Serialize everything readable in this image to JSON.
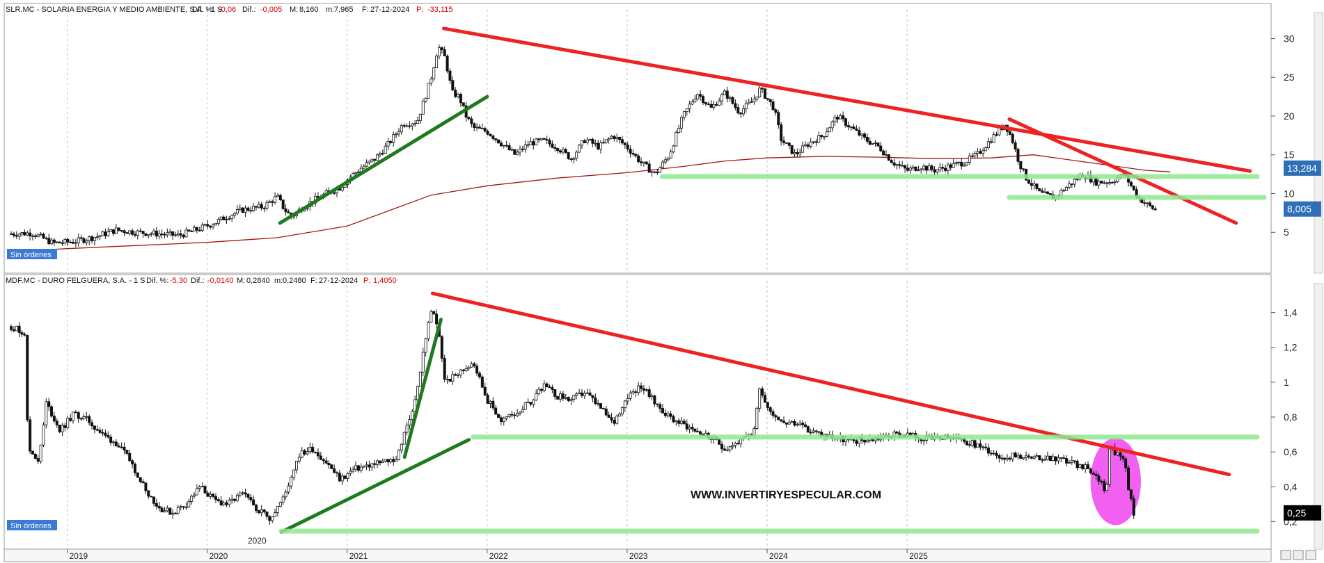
{
  "chart_data": [
    {
      "type": "candlestick",
      "panel": "top",
      "header": {
        "symbol": "SLR.MC - SOLARIA ENERGIA Y MEDIO AMBIENTE, S.A. - 1 S",
        "dif_pct_label": "Dif. %:",
        "dif_pct": "-0,06",
        "dif_label": "Dif.:",
        "dif": "-0,005",
        "max_label": "M:",
        "max": "8,160",
        "min_label": "m:",
        "min": "7,965",
        "date_label": "F:",
        "date": "27-12-2024",
        "p_label": "P:",
        "p": "-33,115"
      },
      "ylim": [
        0,
        33
      ],
      "yticks": [
        5,
        10,
        15,
        20,
        25,
        30
      ],
      "ytick_labels": [
        "5",
        "10",
        "15",
        "20",
        "25",
        "30"
      ],
      "price_badges": [
        {
          "value": 13.284,
          "label": "13,284",
          "color": "#2f6fb8"
        },
        {
          "value": 8.005,
          "label": "8,005",
          "color": "#2f6fb8"
        }
      ],
      "order_tag": "Sin órdenes",
      "price_path": [
        [
          2018.6,
          4.8
        ],
        [
          2018.75,
          4.9
        ],
        [
          2018.9,
          3.6
        ],
        [
          2019.05,
          3.8
        ],
        [
          2019.2,
          4.4
        ],
        [
          2019.35,
          5.3
        ],
        [
          2019.5,
          5.0
        ],
        [
          2019.65,
          4.8
        ],
        [
          2019.8,
          4.6
        ],
        [
          2019.95,
          5.5
        ],
        [
          2020.05,
          6.2
        ],
        [
          2020.15,
          7.1
        ],
        [
          2020.25,
          7.9
        ],
        [
          2020.4,
          8.3
        ],
        [
          2020.5,
          9.6
        ],
        [
          2020.55,
          8.0
        ],
        [
          2020.6,
          7.0
        ],
        [
          2020.7,
          8.5
        ],
        [
          2020.85,
          10.0
        ],
        [
          2020.95,
          10.8
        ],
        [
          2021.0,
          11.8
        ],
        [
          2021.1,
          13.3
        ],
        [
          2021.2,
          14.5
        ],
        [
          2021.3,
          16.5
        ],
        [
          2021.4,
          19.0
        ],
        [
          2021.5,
          19.3
        ],
        [
          2021.55,
          22.0
        ],
        [
          2021.6,
          25.0
        ],
        [
          2021.65,
          29.0
        ],
        [
          2021.7,
          27.5
        ],
        [
          2021.75,
          23.0
        ],
        [
          2021.8,
          22.5
        ],
        [
          2021.85,
          20.0
        ],
        [
          2021.9,
          18.5
        ],
        [
          2022.0,
          18.0
        ],
        [
          2022.1,
          16.5
        ],
        [
          2022.2,
          15.0
        ],
        [
          2022.3,
          16.5
        ],
        [
          2022.4,
          16.8
        ],
        [
          2022.5,
          16.0
        ],
        [
          2022.6,
          14.5
        ],
        [
          2022.7,
          17.0
        ],
        [
          2022.8,
          16.0
        ],
        [
          2022.9,
          17.5
        ],
        [
          2023.0,
          16.0
        ],
        [
          2023.1,
          14.0
        ],
        [
          2023.2,
          12.5
        ],
        [
          2023.3,
          15.0
        ],
        [
          2023.4,
          20.0
        ],
        [
          2023.5,
          23.0
        ],
        [
          2023.6,
          21.0
        ],
        [
          2023.7,
          23.0
        ],
        [
          2023.8,
          20.5
        ],
        [
          2023.9,
          22.0
        ],
        [
          2023.95,
          23.5
        ],
        [
          2024.05,
          21.0
        ],
        [
          2024.1,
          17.0
        ],
        [
          2024.2,
          15.0
        ],
        [
          2024.3,
          16.5
        ],
        [
          2024.4,
          17.5
        ],
        [
          2024.5,
          20.0
        ],
        [
          2024.6,
          18.5
        ],
        [
          2024.7,
          17.0
        ],
        [
          2024.8,
          16.0
        ],
        [
          2024.9,
          14.0
        ],
        [
          2025.0,
          13.0
        ],
        [
          2025.1,
          13.5
        ],
        [
          2025.2,
          13.0
        ],
        [
          2025.3,
          13.5
        ],
        [
          2025.4,
          14.0
        ],
        [
          2025.5,
          15.0
        ],
        [
          2025.6,
          17.0
        ],
        [
          2025.7,
          19.0
        ],
        [
          2025.75,
          17.0
        ],
        [
          2025.8,
          14.0
        ],
        [
          2025.85,
          12.0
        ],
        [
          2025.95,
          10.0
        ],
        [
          2026.05,
          9.5
        ],
        [
          2026.15,
          11.0
        ],
        [
          2026.25,
          12.5
        ],
        [
          2026.35,
          11.5
        ],
        [
          2026.45,
          11.5
        ],
        [
          2026.55,
          12.5
        ],
        [
          2026.6,
          11.0
        ],
        [
          2026.65,
          9.5
        ],
        [
          2026.72,
          8.5
        ],
        [
          2026.78,
          7.8
        ]
      ],
      "moving_average": [
        [
          2018.6,
          2.5
        ],
        [
          2019.0,
          2.9
        ],
        [
          2019.5,
          3.3
        ],
        [
          2020.0,
          3.7
        ],
        [
          2020.5,
          4.3
        ],
        [
          2021.0,
          5.8
        ],
        [
          2021.3,
          7.8
        ],
        [
          2021.6,
          9.8
        ],
        [
          2022.0,
          11.0
        ],
        [
          2022.5,
          12.0
        ],
        [
          2023.0,
          12.7
        ],
        [
          2023.4,
          13.5
        ],
        [
          2023.7,
          14.2
        ],
        [
          2024.0,
          14.6
        ],
        [
          2024.4,
          14.8
        ],
        [
          2024.8,
          14.7
        ],
        [
          2025.2,
          14.5
        ],
        [
          2025.6,
          14.6
        ],
        [
          2025.9,
          15.0
        ],
        [
          2026.3,
          14.0
        ],
        [
          2026.7,
          13.0
        ],
        [
          2026.88,
          12.8
        ]
      ],
      "trendlines": [
        {
          "color": "#ee2222",
          "from": [
            2021.69,
            31.3
          ],
          "to": [
            2027.45,
            12.9
          ]
        },
        {
          "color": "#ee2222",
          "from": [
            2025.73,
            19.6
          ],
          "to": [
            2027.35,
            6.2
          ]
        },
        {
          "color": "#1f7a1f",
          "from": [
            2020.52,
            6.2
          ],
          "to": [
            2022.0,
            22.5
          ]
        },
        {
          "color": "#8ee88e",
          "from": [
            2023.25,
            12.2
          ],
          "to": [
            2027.5,
            12.2
          ]
        },
        {
          "color": "#8ee88e",
          "from": [
            2025.73,
            9.5
          ],
          "to": [
            2027.55,
            9.5
          ]
        }
      ]
    },
    {
      "type": "candlestick",
      "panel": "bottom",
      "header": {
        "symbol": "MDF.MC - DURO FELGUERA, S.A. - 1 S",
        "dif_pct_label": "Dif. %:",
        "dif_pct": "-5,30",
        "dif_label": "Dif.:",
        "dif": "-0,0140",
        "max_label": "M:",
        "max": "0,2840",
        "min_label": "m:",
        "min": "0,2480",
        "date_label": "F:",
        "date": "27-12-2024",
        "p_label": "P:",
        "p": "1,4050"
      },
      "ylim": [
        0.05,
        1.55
      ],
      "yticks": [
        0.2,
        0.4,
        0.6,
        0.8,
        1.0,
        1.2,
        1.4
      ],
      "ytick_labels": [
        "0,2",
        "0,4",
        "0,6",
        "0,8",
        "1",
        "1,2",
        "1,4"
      ],
      "price_badges": [
        {
          "value": 0.25,
          "label": "0,25",
          "color": "#000000"
        }
      ],
      "order_tag": "Sin órdenes",
      "watermark": "WWW.INVERTIRYESPECULAR.COM",
      "price_path": [
        [
          2018.6,
          1.32
        ],
        [
          2018.7,
          1.28
        ],
        [
          2018.72,
          0.62
        ],
        [
          2018.8,
          0.55
        ],
        [
          2018.85,
          0.88
        ],
        [
          2018.95,
          0.72
        ],
        [
          2019.05,
          0.82
        ],
        [
          2019.15,
          0.78
        ],
        [
          2019.25,
          0.7
        ],
        [
          2019.35,
          0.65
        ],
        [
          2019.45,
          0.55
        ],
        [
          2019.55,
          0.4
        ],
        [
          2019.65,
          0.28
        ],
        [
          2019.75,
          0.25
        ],
        [
          2019.85,
          0.3
        ],
        [
          2019.95,
          0.4
        ],
        [
          2020.05,
          0.32
        ],
        [
          2020.15,
          0.3
        ],
        [
          2020.25,
          0.36
        ],
        [
          2020.35,
          0.28
        ],
        [
          2020.45,
          0.22
        ],
        [
          2020.55,
          0.34
        ],
        [
          2020.65,
          0.58
        ],
        [
          2020.75,
          0.62
        ],
        [
          2020.85,
          0.54
        ],
        [
          2020.95,
          0.44
        ],
        [
          2021.05,
          0.5
        ],
        [
          2021.15,
          0.52
        ],
        [
          2021.25,
          0.54
        ],
        [
          2021.35,
          0.56
        ],
        [
          2021.4,
          0.68
        ],
        [
          2021.45,
          0.8
        ],
        [
          2021.5,
          0.95
        ],
        [
          2021.55,
          1.2
        ],
        [
          2021.6,
          1.42
        ],
        [
          2021.65,
          1.3
        ],
        [
          2021.7,
          1.0
        ],
        [
          2021.8,
          1.05
        ],
        [
          2021.9,
          1.12
        ],
        [
          2022.0,
          0.9
        ],
        [
          2022.1,
          0.78
        ],
        [
          2022.2,
          0.82
        ],
        [
          2022.3,
          0.88
        ],
        [
          2022.4,
          0.98
        ],
        [
          2022.5,
          0.92
        ],
        [
          2022.6,
          0.9
        ],
        [
          2022.7,
          0.94
        ],
        [
          2022.8,
          0.86
        ],
        [
          2022.9,
          0.76
        ],
        [
          2023.0,
          0.92
        ],
        [
          2023.1,
          0.98
        ],
        [
          2023.2,
          0.88
        ],
        [
          2023.3,
          0.8
        ],
        [
          2023.4,
          0.76
        ],
        [
          2023.5,
          0.72
        ],
        [
          2023.6,
          0.68
        ],
        [
          2023.7,
          0.62
        ],
        [
          2023.8,
          0.66
        ],
        [
          2023.9,
          0.7
        ],
        [
          2023.95,
          0.98
        ],
        [
          2024.0,
          0.86
        ],
        [
          2024.1,
          0.78
        ],
        [
          2024.2,
          0.76
        ],
        [
          2024.3,
          0.72
        ],
        [
          2024.4,
          0.7
        ],
        [
          2024.5,
          0.68
        ],
        [
          2024.6,
          0.66
        ],
        [
          2024.7,
          0.67
        ],
        [
          2024.8,
          0.68
        ],
        [
          2024.9,
          0.7
        ],
        [
          2025.0,
          0.7
        ],
        [
          2025.1,
          0.68
        ],
        [
          2025.2,
          0.67
        ],
        [
          2025.3,
          0.68
        ],
        [
          2025.4,
          0.66
        ],
        [
          2025.5,
          0.64
        ],
        [
          2025.6,
          0.6
        ],
        [
          2025.7,
          0.57
        ],
        [
          2025.8,
          0.58
        ],
        [
          2025.9,
          0.56
        ],
        [
          2026.0,
          0.57
        ],
        [
          2026.1,
          0.56
        ],
        [
          2026.2,
          0.53
        ],
        [
          2026.3,
          0.5
        ],
        [
          2026.35,
          0.46
        ],
        [
          2026.4,
          0.42
        ],
        [
          2026.42,
          0.35
        ],
        [
          2026.45,
          0.65
        ],
        [
          2026.5,
          0.58
        ],
        [
          2026.55,
          0.56
        ],
        [
          2026.58,
          0.4
        ],
        [
          2026.62,
          0.24
        ]
      ],
      "trendlines": [
        {
          "color": "#ee2222",
          "from": [
            2021.61,
            1.51
          ],
          "to": [
            2027.3,
            0.47
          ]
        },
        {
          "color": "#1f7a1f",
          "from": [
            2020.53,
            0.14
          ],
          "to": [
            2021.87,
            0.67
          ]
        },
        {
          "color": "#1f7a1f",
          "from": [
            2021.41,
            0.57
          ],
          "to": [
            2021.67,
            1.36
          ]
        },
        {
          "color": "#8ee88e",
          "from": [
            2021.9,
            0.685
          ],
          "to": [
            2027.5,
            0.685
          ]
        },
        {
          "color": "#8ee88e",
          "from": [
            2020.53,
            0.145
          ],
          "to": [
            2027.5,
            0.145
          ]
        }
      ],
      "highlight": {
        "color": "#ee44ee",
        "center": [
          2026.49,
          0.43
        ],
        "rx_years": 0.18,
        "ry_value": 0.25
      }
    }
  ],
  "x_axis": {
    "type": "time",
    "range": [
      2018.55,
      2027.6
    ],
    "ticks": [
      2019,
      2020,
      2021,
      2022,
      2023,
      2024,
      2025
    ],
    "tick_labels": [
      "2019",
      "2020",
      "2021",
      "2022",
      "2023",
      "2024",
      "2025"
    ],
    "panel_tick_label": "2020"
  },
  "colors": {
    "up_candle": "#ffffff",
    "down_candle": "#111111",
    "moving_average": "#a01818",
    "badge": "#2f6fb8"
  }
}
